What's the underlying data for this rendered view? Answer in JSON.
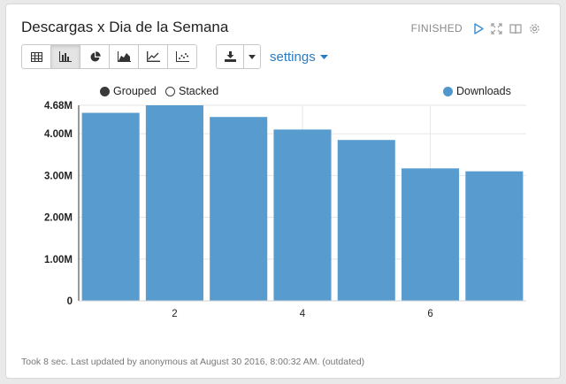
{
  "paragraph": {
    "title": "Descargas x Dia de la Semana",
    "status": "FINISHED",
    "footer": "Took 8 sec. Last updated by anonymous at August 30 2016, 8:00:32 AM. (outdated)"
  },
  "toolbar": {
    "buttons": [
      {
        "name": "table-icon",
        "active": false
      },
      {
        "name": "bar-chart-icon",
        "active": true
      },
      {
        "name": "pie-chart-icon",
        "active": false
      },
      {
        "name": "area-chart-icon",
        "active": false
      },
      {
        "name": "line-chart-icon",
        "active": false
      },
      {
        "name": "scatter-chart-icon",
        "active": false
      }
    ],
    "download_icon": "download-icon",
    "settings_label": "settings"
  },
  "legend": {
    "grouped": "Grouped",
    "stacked": "Stacked",
    "grouped_selected": true
  },
  "colors": {
    "bar": "#4f97cc",
    "link": "#2a7bc0"
  },
  "chart_data": {
    "type": "bar",
    "x": [
      1,
      2,
      3,
      4,
      5,
      6,
      7
    ],
    "x_tick_labels": [
      "2",
      "4",
      "6"
    ],
    "x_tick_values": [
      2,
      4,
      6
    ],
    "series": [
      {
        "name": "Downloads",
        "values": [
          4.5,
          4.68,
          4.4,
          4.1,
          3.85,
          3.17,
          3.1
        ]
      }
    ],
    "y_tick_labels": [
      "0",
      "1.00M",
      "2.00M",
      "3.00M",
      "4.00M",
      "4.68M"
    ],
    "y_tick_values": [
      0,
      1.0,
      2.0,
      3.0,
      4.0,
      4.68
    ],
    "ylim": [
      0,
      4.68
    ],
    "grid": true,
    "legend_position": "top-right"
  }
}
